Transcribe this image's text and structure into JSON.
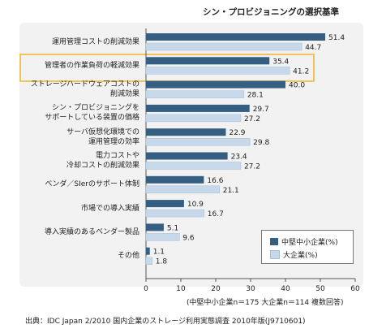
{
  "chart_data": {
    "type": "bar",
    "orientation": "horizontal",
    "title": "シン・プロビジョニングの選択基準",
    "categories": [
      "運用管理コストの削減効果",
      "管理者の作業負荷の軽減効果",
      "ストレージハードウェアコストの\n削減効果",
      "シン・プロビジョニングを\nサポートしている装置の価格",
      "サーバ仮想化環境での\n運用管理の効率",
      "電力コストや\n冷却コストの削減効果",
      "ベンダ／SIerのサポート体制",
      "市場での導入実績",
      "導入実績のあるベンダー製品",
      "その他"
    ],
    "series": [
      {
        "name": "中堅中小企業(%)",
        "color": "#345e82",
        "values": [
          51.4,
          35.4,
          40.0,
          29.7,
          22.9,
          23.4,
          16.6,
          10.9,
          5.1,
          1.1
        ]
      },
      {
        "name": "大企業(%)",
        "color": "#c6d8ea",
        "values": [
          44.7,
          41.2,
          28.1,
          27.2,
          29.8,
          27.2,
          21.1,
          16.7,
          9.6,
          1.8
        ]
      }
    ],
    "value_labels": [
      [
        "51.4",
        "35.4",
        "40.0",
        "29.7",
        "22.9",
        "23.4",
        "16.6",
        "10.9",
        "5.1",
        "1.1"
      ],
      [
        "44.7",
        "41.2",
        "28.1",
        "27.2",
        "29.8",
        "27.2",
        "21.1",
        "16.7",
        "9.6",
        "1.8"
      ]
    ],
    "x_ticks": [
      "0",
      "10",
      "20",
      "30",
      "40",
      "50",
      "60"
    ],
    "xlim": [
      0,
      60
    ],
    "highlighted_category": "管理者の作業負荷の軽減効果",
    "legend_position": "bottom-right",
    "note": "(中堅中小企業n＝175 大企業n＝114 複数回答)",
    "source": "出典：IDC Japan 2/2010 国内企業のストレージ利用実態調査 2010年版(J9710601)"
  }
}
